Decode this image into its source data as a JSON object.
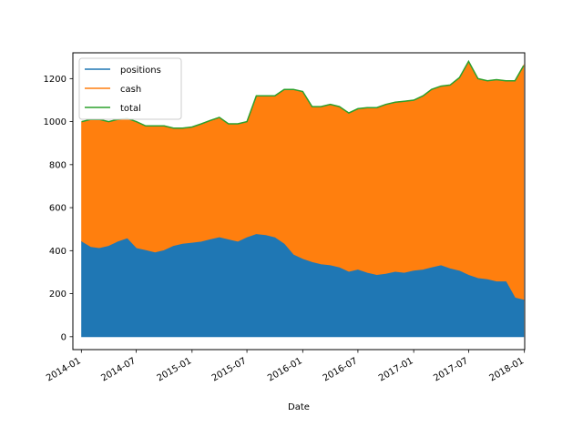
{
  "chart_data": {
    "type": "area",
    "title": "",
    "xlabel": "Date",
    "ylabel": "",
    "x_axis": {
      "type": "date",
      "range": [
        "2013-12-04",
        "2018-01-02"
      ]
    },
    "ylim": [
      -60,
      1320
    ],
    "yticks": [
      0,
      200,
      400,
      600,
      800,
      1000,
      1200
    ],
    "xticks": [
      "2014-01",
      "2014-07",
      "2015-01",
      "2015-07",
      "2016-01",
      "2016-07",
      "2017-01",
      "2017-07",
      "2018-01"
    ],
    "legend": {
      "placement": "top-left",
      "entries": [
        "positions",
        "cash",
        "total"
      ]
    },
    "grid": false,
    "series": [
      {
        "name": "positions",
        "color": "#1f77b4",
        "x": [
          "2014-01-02",
          "2014-02-01",
          "2014-03-01",
          "2014-04-01",
          "2014-05-01",
          "2014-06-01",
          "2014-07-01",
          "2014-08-01",
          "2014-09-01",
          "2014-10-01",
          "2014-11-01",
          "2014-12-01",
          "2015-01-01",
          "2015-02-01",
          "2015-03-01",
          "2015-04-01",
          "2015-05-01",
          "2015-06-01",
          "2015-07-01",
          "2015-08-01",
          "2015-09-01",
          "2015-10-01",
          "2015-11-01",
          "2015-12-01",
          "2016-01-01",
          "2016-02-01",
          "2016-03-01",
          "2016-04-01",
          "2016-05-01",
          "2016-06-01",
          "2016-07-01",
          "2016-08-01",
          "2016-09-01",
          "2016-10-01",
          "2016-11-01",
          "2016-12-01",
          "2017-01-01",
          "2017-02-01",
          "2017-03-01",
          "2017-04-01",
          "2017-05-01",
          "2017-06-01",
          "2017-07-01",
          "2017-08-01",
          "2017-09-01",
          "2017-10-01",
          "2017-11-01",
          "2017-12-01",
          "2017-12-29"
        ],
        "values": [
          440,
          415,
          410,
          420,
          440,
          455,
          410,
          400,
          390,
          400,
          420,
          430,
          435,
          440,
          450,
          460,
          450,
          440,
          460,
          475,
          470,
          460,
          430,
          380,
          360,
          345,
          335,
          330,
          320,
          300,
          310,
          295,
          285,
          290,
          300,
          295,
          305,
          310,
          320,
          330,
          315,
          305,
          285,
          270,
          265,
          255,
          255,
          180,
          170
        ]
      },
      {
        "name": "cash",
        "color": "#ff7f0e",
        "x": [
          "2014-01-02",
          "2014-02-01",
          "2014-03-01",
          "2014-04-01",
          "2014-05-01",
          "2014-06-01",
          "2014-07-01",
          "2014-08-01",
          "2014-09-01",
          "2014-10-01",
          "2014-11-01",
          "2014-12-01",
          "2015-01-01",
          "2015-02-01",
          "2015-03-01",
          "2015-04-01",
          "2015-05-01",
          "2015-06-01",
          "2015-07-01",
          "2015-08-01",
          "2015-09-01",
          "2015-10-01",
          "2015-11-01",
          "2015-12-01",
          "2016-01-01",
          "2016-02-01",
          "2016-03-01",
          "2016-04-01",
          "2016-05-01",
          "2016-06-01",
          "2016-07-01",
          "2016-08-01",
          "2016-09-01",
          "2016-10-01",
          "2016-11-01",
          "2016-12-01",
          "2017-01-01",
          "2017-02-01",
          "2017-03-01",
          "2017-04-01",
          "2017-05-01",
          "2017-06-01",
          "2017-07-01",
          "2017-08-01",
          "2017-09-01",
          "2017-10-01",
          "2017-11-01",
          "2017-12-01",
          "2017-12-29"
        ],
        "values": [
          560,
          595,
          600,
          580,
          570,
          560,
          590,
          580,
          590,
          580,
          550,
          540,
          540,
          550,
          555,
          560,
          540,
          550,
          540,
          645,
          650,
          660,
          720,
          770,
          780,
          725,
          735,
          750,
          750,
          740,
          750,
          770,
          780,
          790,
          790,
          800,
          795,
          810,
          830,
          835,
          855,
          900,
          995,
          930,
          925,
          940,
          935,
          1010,
          1090
        ]
      },
      {
        "name": "total",
        "color": "#2ca02c",
        "x": [
          "2014-01-02",
          "2014-02-01",
          "2014-03-01",
          "2014-04-01",
          "2014-05-01",
          "2014-06-01",
          "2014-07-01",
          "2014-08-01",
          "2014-09-01",
          "2014-10-01",
          "2014-11-01",
          "2014-12-01",
          "2015-01-01",
          "2015-02-01",
          "2015-03-01",
          "2015-04-01",
          "2015-05-01",
          "2015-06-01",
          "2015-07-01",
          "2015-08-01",
          "2015-09-01",
          "2015-10-01",
          "2015-11-01",
          "2015-12-01",
          "2016-01-01",
          "2016-02-01",
          "2016-03-01",
          "2016-04-01",
          "2016-05-01",
          "2016-06-01",
          "2016-07-01",
          "2016-08-01",
          "2016-09-01",
          "2016-10-01",
          "2016-11-01",
          "2016-12-01",
          "2017-01-01",
          "2017-02-01",
          "2017-03-01",
          "2017-04-01",
          "2017-05-01",
          "2017-06-01",
          "2017-07-01",
          "2017-08-01",
          "2017-09-01",
          "2017-10-01",
          "2017-11-01",
          "2017-12-01",
          "2017-12-29"
        ],
        "values": [
          1000,
          1010,
          1010,
          1000,
          1010,
          1015,
          1000,
          980,
          980,
          980,
          970,
          970,
          975,
          990,
          1005,
          1020,
          990,
          990,
          1000,
          1120,
          1120,
          1120,
          1150,
          1150,
          1140,
          1070,
          1070,
          1080,
          1070,
          1040,
          1060,
          1065,
          1065,
          1080,
          1090,
          1095,
          1100,
          1120,
          1150,
          1165,
          1170,
          1205,
          1280,
          1200,
          1190,
          1195,
          1190,
          1190,
          1260
        ]
      }
    ]
  }
}
